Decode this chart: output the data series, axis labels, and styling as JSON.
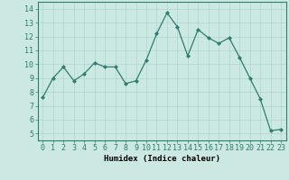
{
  "x": [
    0,
    1,
    2,
    3,
    4,
    5,
    6,
    7,
    8,
    9,
    10,
    11,
    12,
    13,
    14,
    15,
    16,
    17,
    18,
    19,
    20,
    21,
    22,
    23
  ],
  "y": [
    7.6,
    9.0,
    9.8,
    8.8,
    9.3,
    10.1,
    9.8,
    9.8,
    8.6,
    8.8,
    10.3,
    12.2,
    13.7,
    12.7,
    10.6,
    12.5,
    11.9,
    11.5,
    11.9,
    10.5,
    9.0,
    7.5,
    5.2,
    5.3
  ],
  "line_color": "#2e7d6e",
  "marker": "D",
  "markersize": 2.0,
  "linewidth": 0.9,
  "xlim": [
    -0.5,
    23.5
  ],
  "ylim": [
    4.5,
    14.5
  ],
  "yticks": [
    5,
    6,
    7,
    8,
    9,
    10,
    11,
    12,
    13,
    14
  ],
  "xticks": [
    0,
    1,
    2,
    3,
    4,
    5,
    6,
    7,
    8,
    9,
    10,
    11,
    12,
    13,
    14,
    15,
    16,
    17,
    18,
    19,
    20,
    21,
    22,
    23
  ],
  "xlabel": "Humidex (Indice chaleur)",
  "xlabel_fontsize": 6.5,
  "tick_fontsize": 6.0,
  "grid_color": "#aed4cc",
  "background_color": "#cce8e2",
  "spine_color": "#2e7d6e"
}
